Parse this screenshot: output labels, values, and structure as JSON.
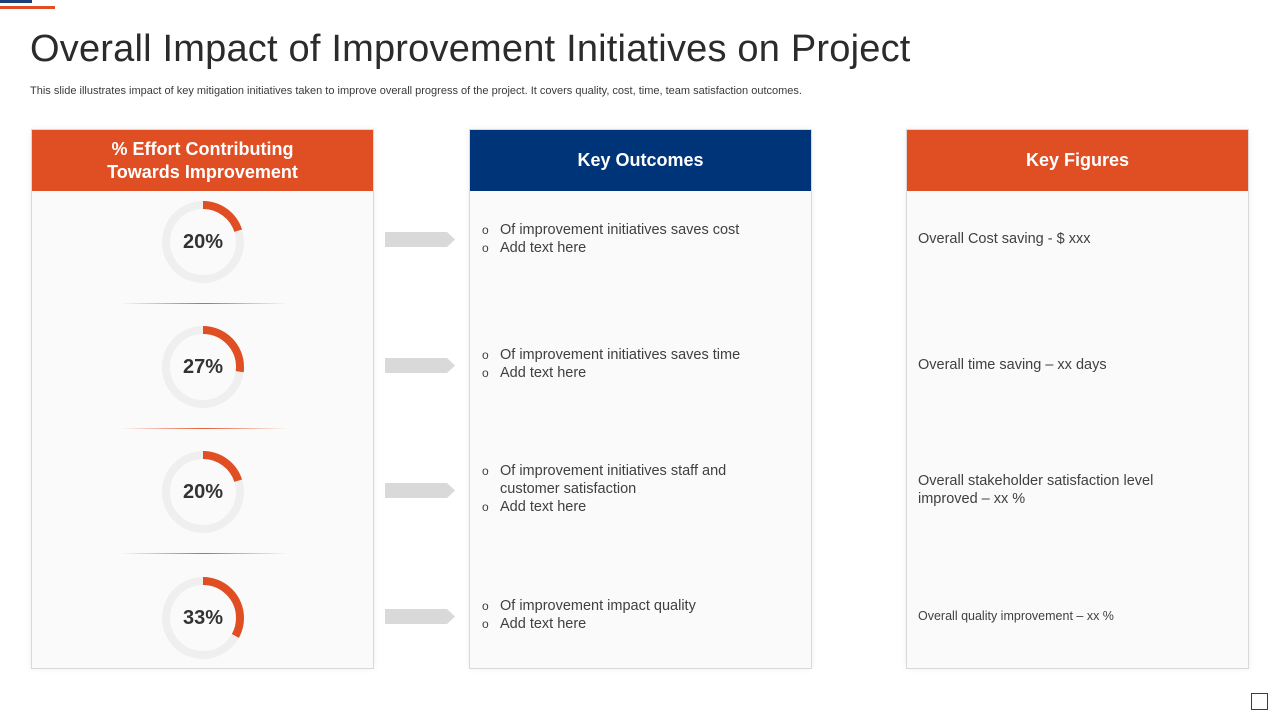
{
  "title": "Overall Impact of Improvement Initiatives on Project",
  "subtitle": "This slide illustrates impact of key mitigation initiatives taken to improve overall progress of the project. It covers quality, cost, time, team satisfaction outcomes.",
  "colors": {
    "accent": "#e04e24",
    "navy": "#003478",
    "ring": "#efefef"
  },
  "effort_panel": {
    "header_line1": "% Effort Contributing",
    "header_line2": "Towards Improvement",
    "donuts": [
      {
        "label": "20%",
        "value": 20
      },
      {
        "label": "27%",
        "value": 27
      },
      {
        "label": "20%",
        "value": 20
      },
      {
        "label": "33%",
        "value": 33
      }
    ]
  },
  "outcomes_panel": {
    "header": "Key Outcomes",
    "bullet_marker": "o",
    "groups": [
      [
        "Of improvement initiatives saves cost",
        "Add text here"
      ],
      [
        "Of improvement initiatives saves time",
        "Add text here"
      ],
      [
        "Of improvement initiatives staff and customer satisfaction",
        "Add text here"
      ],
      [
        "Of improvement impact quality",
        "Add text here"
      ]
    ]
  },
  "figures_panel": {
    "header": "Key Figures",
    "items": [
      "Overall Cost saving - $ xxx",
      "Overall time saving – xx days",
      "Overall stakeholder satisfaction level improved – xx %",
      "Overall  quality improvement  – xx %"
    ]
  }
}
